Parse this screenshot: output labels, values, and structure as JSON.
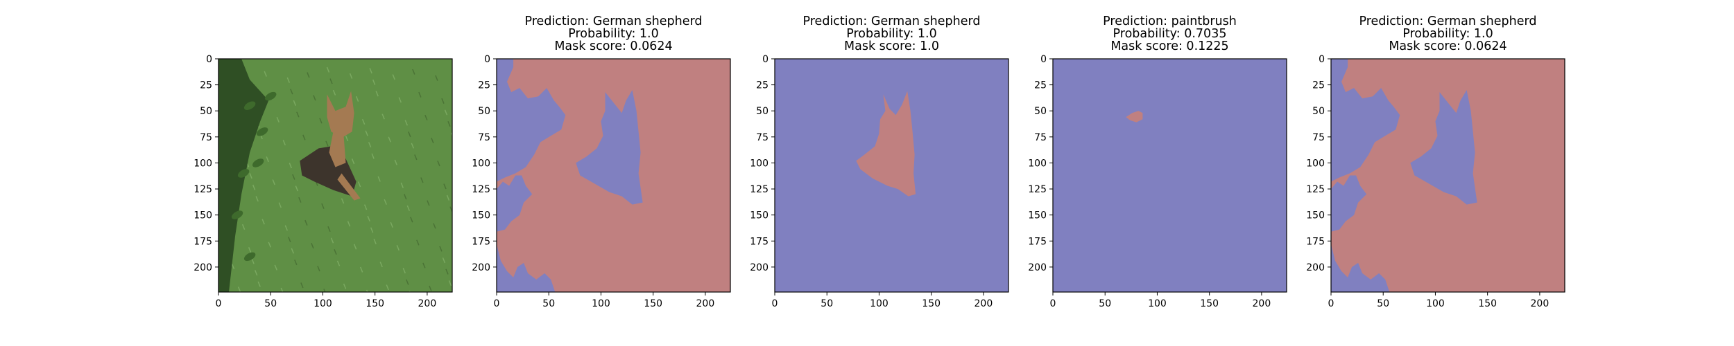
{
  "colors": {
    "background_class": "#8080c0",
    "foreground_class": "#c08080",
    "axes": "#000000"
  },
  "chart_data": [
    {
      "type": "image",
      "panel": "input-photo",
      "title_lines": [],
      "xticks": [
        0,
        50,
        100,
        150,
        200
      ],
      "yticks": [
        0,
        25,
        50,
        75,
        100,
        125,
        150,
        175,
        200
      ],
      "xlim": [
        0,
        224
      ],
      "ylim": [
        224,
        0
      ],
      "image": {
        "description": "photo of a German shepherd lying in grass with a leafy branch on the left",
        "grass_color": "#5f8f45",
        "dog_color": "#3d342c",
        "dog_tan_color": "#a47a52",
        "leaf_color": "#2f4f24"
      }
    },
    {
      "type": "mask",
      "panel": "mask-german-shepherd-1",
      "title_lines": [
        "Prediction: German shepherd",
        "Probability: 1.0",
        "Mask score: 0.0624"
      ],
      "xticks": [
        0,
        50,
        100,
        150,
        200
      ],
      "yticks": [
        0,
        25,
        50,
        75,
        100,
        125,
        150,
        175,
        200
      ],
      "xlim": [
        0,
        224
      ],
      "ylim": [
        224,
        0
      ],
      "base_class": "foreground",
      "regions": [
        {
          "class": "background",
          "polygon": [
            [
              0,
              0
            ],
            [
              16,
              0
            ],
            [
              16,
              8
            ],
            [
              10,
              22
            ],
            [
              14,
              32
            ],
            [
              22,
              28
            ],
            [
              30,
              38
            ],
            [
              40,
              36
            ],
            [
              48,
              28
            ],
            [
              55,
              40
            ],
            [
              60,
              46
            ],
            [
              66,
              54
            ],
            [
              62,
              68
            ],
            [
              52,
              74
            ],
            [
              42,
              80
            ],
            [
              36,
              92
            ],
            [
              28,
              104
            ],
            [
              18,
              110
            ],
            [
              8,
              114
            ],
            [
              0,
              118
            ]
          ]
        },
        {
          "class": "background",
          "polygon": [
            [
              0,
              125
            ],
            [
              6,
              118
            ],
            [
              12,
              122
            ],
            [
              18,
              112
            ],
            [
              24,
              112
            ],
            [
              28,
              122
            ],
            [
              34,
              130
            ],
            [
              26,
              138
            ],
            [
              22,
              150
            ],
            [
              14,
              156
            ],
            [
              8,
              164
            ],
            [
              0,
              166
            ]
          ]
        },
        {
          "class": "background",
          "polygon": [
            [
              0,
              178
            ],
            [
              4,
              194
            ],
            [
              10,
              204
            ],
            [
              16,
              210
            ],
            [
              20,
              200
            ],
            [
              26,
              196
            ],
            [
              30,
              206
            ],
            [
              38,
              212
            ],
            [
              46,
              206
            ],
            [
              52,
              212
            ],
            [
              56,
              224
            ],
            [
              0,
              224
            ]
          ]
        },
        {
          "class": "background",
          "polygon": [
            [
              104,
              32
            ],
            [
              112,
              42
            ],
            [
              120,
              52
            ],
            [
              124,
              40
            ],
            [
              130,
              30
            ],
            [
              134,
              50
            ],
            [
              136,
              70
            ],
            [
              138,
              90
            ],
            [
              136,
              110
            ],
            [
              140,
              138
            ],
            [
              130,
              140
            ],
            [
              120,
              132
            ],
            [
              108,
              128
            ],
            [
              94,
              120
            ],
            [
              80,
              112
            ],
            [
              76,
              100
            ],
            [
              86,
              94
            ],
            [
              96,
              86
            ],
            [
              102,
              74
            ],
            [
              100,
              60
            ],
            [
              104,
              50
            ]
          ]
        },
        {
          "class": "background",
          "polygon": [
            [
              0,
              24
            ],
            [
              6,
              30
            ],
            [
              2,
              40
            ],
            [
              0,
              40
            ]
          ]
        }
      ]
    },
    {
      "type": "mask",
      "panel": "mask-german-shepherd-2",
      "title_lines": [
        "Prediction: German shepherd",
        "Probability: 1.0",
        "Mask score: 1.0"
      ],
      "xticks": [
        0,
        50,
        100,
        150,
        200
      ],
      "yticks": [
        0,
        25,
        50,
        75,
        100,
        125,
        150,
        175,
        200
      ],
      "xlim": [
        0,
        224
      ],
      "ylim": [
        224,
        0
      ],
      "base_class": "background",
      "regions": [
        {
          "class": "foreground",
          "polygon": [
            [
              104,
              34
            ],
            [
              110,
              48
            ],
            [
              116,
              54
            ],
            [
              122,
              44
            ],
            [
              127,
              31
            ],
            [
              130,
              50
            ],
            [
              132,
              70
            ],
            [
              134,
              92
            ],
            [
              133,
              110
            ],
            [
              135,
              130
            ],
            [
              128,
              132
            ],
            [
              118,
              125
            ],
            [
              108,
              122
            ],
            [
              94,
              115
            ],
            [
              82,
              106
            ],
            [
              78,
              98
            ],
            [
              86,
              92
            ],
            [
              96,
              84
            ],
            [
              100,
              72
            ],
            [
              101,
              58
            ],
            [
              106,
              50
            ]
          ]
        }
      ]
    },
    {
      "type": "mask",
      "panel": "mask-paintbrush",
      "title_lines": [
        "Prediction: paintbrush",
        "Probability: 0.7035",
        "Mask score: 0.1225"
      ],
      "xticks": [
        0,
        50,
        100,
        150,
        200
      ],
      "yticks": [
        0,
        25,
        50,
        75,
        100,
        125,
        150,
        175,
        200
      ],
      "xlim": [
        0,
        224
      ],
      "ylim": [
        224,
        0
      ],
      "base_class": "background",
      "regions": [
        {
          "class": "foreground",
          "polygon": [
            [
              70,
              56
            ],
            [
              76,
              52
            ],
            [
              82,
              50
            ],
            [
              86,
              52
            ],
            [
              86,
              58
            ],
            [
              80,
              61
            ],
            [
              74,
              59
            ]
          ]
        }
      ]
    },
    {
      "type": "mask",
      "panel": "mask-german-shepherd-3",
      "title_lines": [
        "Prediction: German shepherd",
        "Probability: 1.0",
        "Mask score: 0.0624"
      ],
      "xticks": [
        0,
        50,
        100,
        150,
        200
      ],
      "yticks": [
        0,
        25,
        50,
        75,
        100,
        125,
        150,
        175,
        200
      ],
      "xlim": [
        0,
        224
      ],
      "ylim": [
        224,
        0
      ],
      "base_class": "foreground",
      "regions": [
        {
          "class": "background",
          "polygon": [
            [
              0,
              0
            ],
            [
              16,
              0
            ],
            [
              16,
              8
            ],
            [
              10,
              22
            ],
            [
              14,
              32
            ],
            [
              22,
              28
            ],
            [
              30,
              38
            ],
            [
              40,
              36
            ],
            [
              48,
              28
            ],
            [
              55,
              40
            ],
            [
              60,
              46
            ],
            [
              66,
              54
            ],
            [
              62,
              68
            ],
            [
              52,
              74
            ],
            [
              42,
              80
            ],
            [
              36,
              92
            ],
            [
              28,
              104
            ],
            [
              18,
              110
            ],
            [
              8,
              114
            ],
            [
              0,
              118
            ]
          ]
        },
        {
          "class": "background",
          "polygon": [
            [
              0,
              125
            ],
            [
              6,
              118
            ],
            [
              12,
              122
            ],
            [
              18,
              112
            ],
            [
              24,
              112
            ],
            [
              28,
              122
            ],
            [
              34,
              130
            ],
            [
              26,
              138
            ],
            [
              22,
              150
            ],
            [
              14,
              156
            ],
            [
              8,
              164
            ],
            [
              0,
              166
            ]
          ]
        },
        {
          "class": "background",
          "polygon": [
            [
              0,
              178
            ],
            [
              4,
              194
            ],
            [
              10,
              204
            ],
            [
              16,
              210
            ],
            [
              20,
              200
            ],
            [
              26,
              196
            ],
            [
              30,
              206
            ],
            [
              38,
              212
            ],
            [
              46,
              206
            ],
            [
              52,
              212
            ],
            [
              56,
              224
            ],
            [
              0,
              224
            ]
          ]
        },
        {
          "class": "background",
          "polygon": [
            [
              104,
              32
            ],
            [
              112,
              42
            ],
            [
              120,
              52
            ],
            [
              124,
              40
            ],
            [
              130,
              30
            ],
            [
              134,
              50
            ],
            [
              136,
              70
            ],
            [
              138,
              90
            ],
            [
              136,
              110
            ],
            [
              140,
              138
            ],
            [
              130,
              140
            ],
            [
              120,
              132
            ],
            [
              108,
              128
            ],
            [
              94,
              120
            ],
            [
              80,
              112
            ],
            [
              76,
              100
            ],
            [
              86,
              94
            ],
            [
              96,
              86
            ],
            [
              102,
              74
            ],
            [
              100,
              60
            ],
            [
              104,
              50
            ]
          ]
        },
        {
          "class": "background",
          "polygon": [
            [
              0,
              24
            ],
            [
              6,
              30
            ],
            [
              2,
              40
            ],
            [
              0,
              40
            ]
          ]
        }
      ]
    }
  ]
}
